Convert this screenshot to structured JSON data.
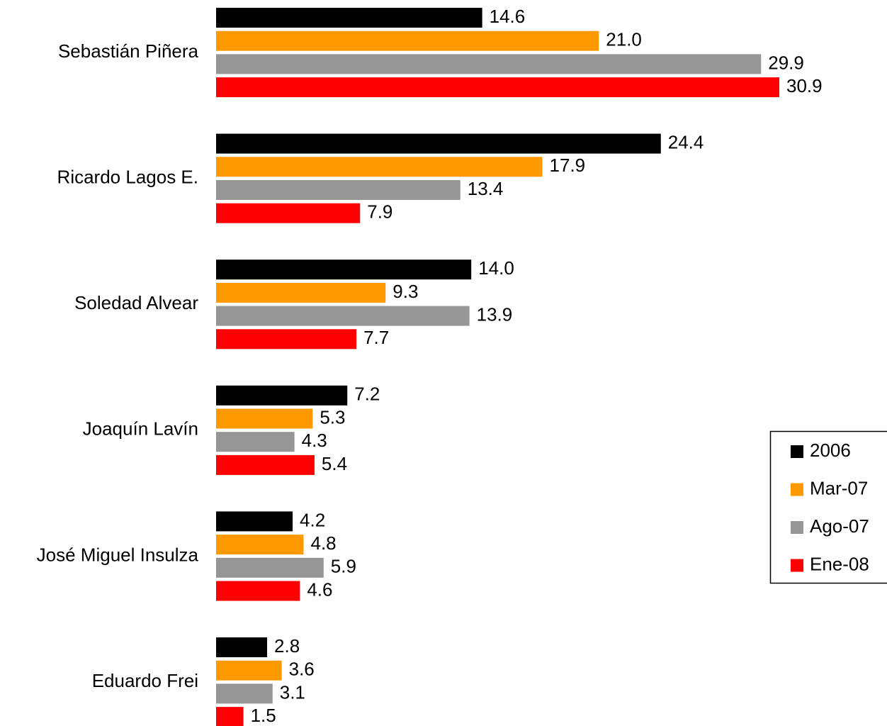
{
  "chart_data": {
    "type": "hbar",
    "categories": [
      "Sebastián Piñera",
      "Ricardo Lagos E.",
      "Soledad Alvear",
      "Joaquín Lavín",
      "José Miguel Insulza",
      "Eduardo Frei"
    ],
    "series": [
      {
        "name": "2006",
        "color": "#000000",
        "values": [
          14.6,
          24.4,
          14.0,
          7.2,
          4.2,
          2.8
        ],
        "value_labels": [
          "14.6",
          "24.4",
          "14.0",
          "7.2",
          "4.2",
          "2.8"
        ]
      },
      {
        "name": "Mar-07",
        "color": "#ff9900",
        "values": [
          21.0,
          17.9,
          9.3,
          5.3,
          4.8,
          3.6
        ],
        "value_labels": [
          "21.0",
          "17.9",
          "9.3",
          "5.3",
          "4.8",
          "3.6"
        ]
      },
      {
        "name": "Ago-07",
        "color": "#969696",
        "values": [
          29.9,
          13.4,
          13.9,
          4.3,
          5.9,
          3.1
        ],
        "value_labels": [
          "29.9",
          "13.4",
          "13.9",
          "4.3",
          "5.9",
          "3.1"
        ]
      },
      {
        "name": "Ene-08",
        "color": "#ff0000",
        "values": [
          30.9,
          7.9,
          7.7,
          5.4,
          4.6,
          1.5
        ],
        "value_labels": [
          "30.9",
          "7.9",
          "7.7",
          "5.4",
          "4.6",
          "1.5"
        ]
      }
    ]
  }
}
